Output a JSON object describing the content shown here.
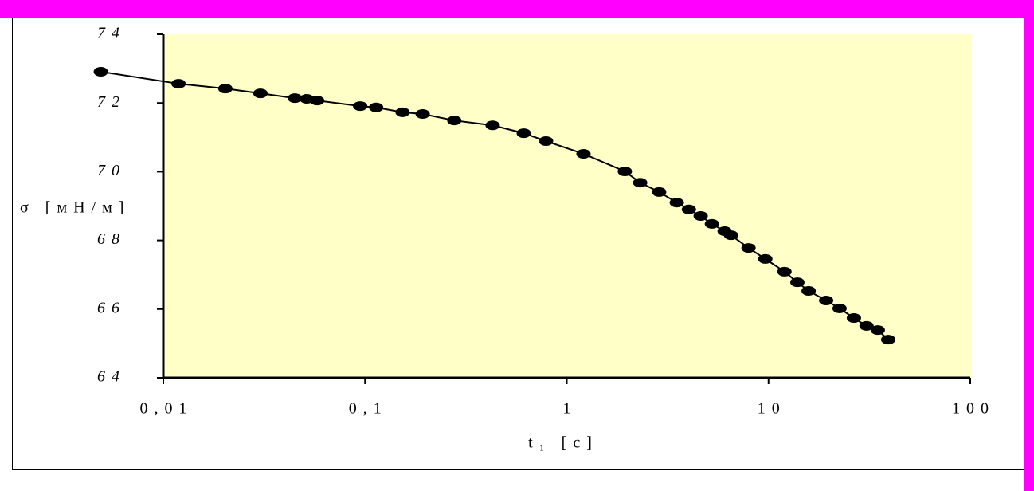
{
  "chart_data": {
    "type": "line",
    "x_label": "t₁ [с]",
    "y_label": "σ [мН/м]",
    "x": [
      0.0049,
      0.0119,
      0.0203,
      0.0303,
      0.0449,
      0.0514,
      0.0579,
      0.0946,
      0.1135,
      0.1535,
      0.193,
      0.277,
      0.429,
      0.612,
      0.789,
      1.21,
      1.94,
      2.31,
      2.87,
      3.51,
      4.03,
      4.61,
      5.24,
      6.06,
      6.52,
      7.96,
      9.64,
      12.0,
      13.9,
      15.8,
      19.3,
      22.5,
      26.5,
      30.6,
      34.8,
      39.2
    ],
    "series": [
      {
        "color": "#000000",
        "values": [
          72.91,
          72.56,
          72.42,
          72.28,
          72.14,
          72.12,
          72.07,
          71.91,
          71.87,
          71.73,
          71.68,
          71.49,
          71.35,
          71.12,
          70.89,
          70.52,
          70.01,
          69.68,
          69.41,
          69.1,
          68.9,
          68.71,
          68.48,
          68.27,
          68.15,
          67.78,
          67.46,
          67.09,
          66.78,
          66.53,
          66.25,
          66.02,
          65.74,
          65.51,
          65.39,
          65.11
        ]
      }
    ],
    "xlim": [
      0.01,
      100
    ],
    "x_log": true,
    "xticks": [
      {
        "value": 0.01,
        "label": "0,01"
      },
      {
        "value": 0.1,
        "label": "0,1"
      },
      1,
      10,
      100
    ],
    "ylim": [
      64,
      74
    ],
    "yticks": [
      64,
      66,
      68,
      70,
      72,
      74
    ],
    "plot_background": "#ffffc8"
  }
}
